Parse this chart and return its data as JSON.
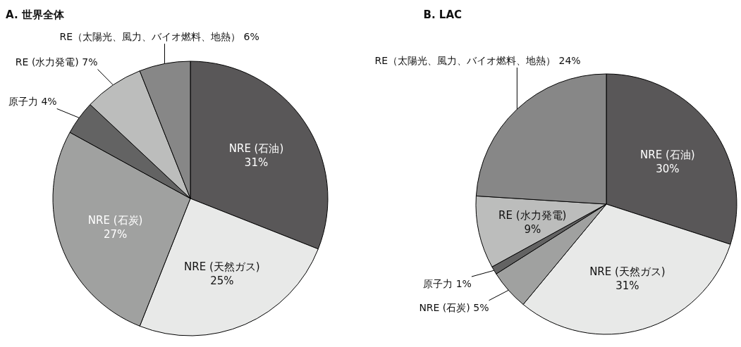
{
  "chart_data": [
    {
      "type": "pie",
      "title": "A. 世界全体",
      "categories": [
        "NRE (石油)",
        "NRE (天然ガス)",
        "NRE (石炭)",
        "原子力",
        "RE (水力発電)",
        "RE（太陽光、風力、バイオ燃料、地熱）"
      ],
      "values": [
        31,
        25,
        27,
        4,
        7,
        6
      ],
      "value_labels": [
        "31%",
        "25%",
        "27%",
        "4%",
        "7%",
        "6%"
      ],
      "colors": [
        "#595758",
        "#e8e9e8",
        "#a0a1a0",
        "#636363",
        "#bcbdbc",
        "#878787"
      ]
    },
    {
      "type": "pie",
      "title": "B. LAC",
      "categories": [
        "NRE (石油)",
        "NRE (天然ガス)",
        "NRE (石炭)",
        "原子力",
        "RE (水力発電)",
        "RE（太陽光、風力、バイオ燃料、地熱）"
      ],
      "values": [
        30,
        31,
        5,
        1,
        9,
        24
      ],
      "value_labels": [
        "30%",
        "31%",
        "5%",
        "1%",
        "9%",
        "24%"
      ],
      "colors": [
        "#595758",
        "#e8e9e8",
        "#a0a1a0",
        "#636363",
        "#bcbdbc",
        "#878787"
      ]
    }
  ]
}
